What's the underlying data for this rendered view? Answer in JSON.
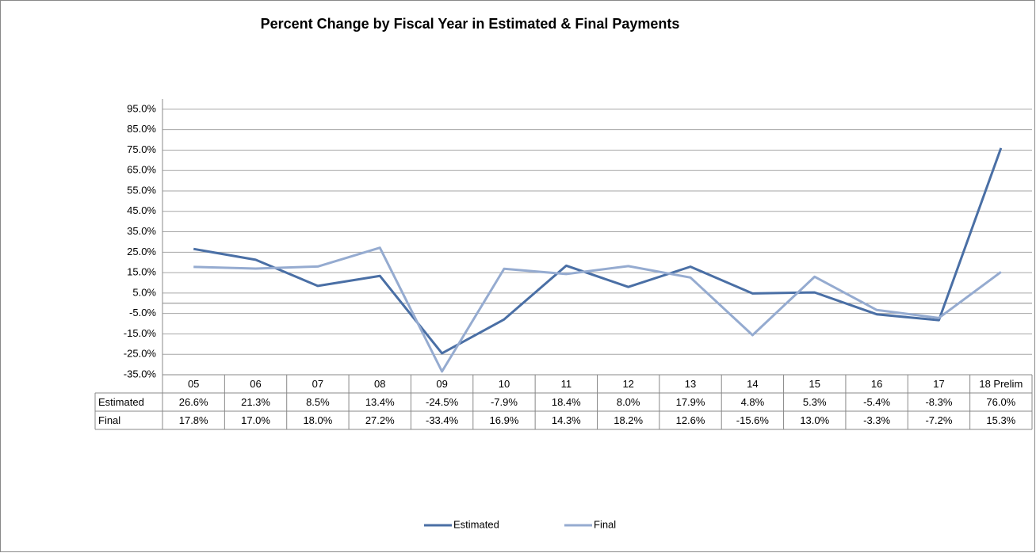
{
  "chart_data": {
    "type": "line",
    "title": "Percent Change by Fiscal Year in Estimated & Final Payments",
    "categories": [
      "05",
      "06",
      "07",
      "08",
      "09",
      "10",
      "11",
      "12",
      "13",
      "14",
      "15",
      "16",
      "17",
      "18 Prelim"
    ],
    "series": [
      {
        "name": "Estimated",
        "color": "#4a6fa5",
        "values": [
          26.6,
          21.3,
          8.5,
          13.4,
          -24.5,
          -7.9,
          18.4,
          8.0,
          17.9,
          4.8,
          5.3,
          -5.4,
          -8.3,
          76.0
        ],
        "value_labels": [
          "26.6%",
          "21.3%",
          "8.5%",
          "13.4%",
          "-24.5%",
          "-7.9%",
          "18.4%",
          "8.0%",
          "17.9%",
          "4.8%",
          "5.3%",
          "-5.4%",
          "-8.3%",
          "76.0%"
        ]
      },
      {
        "name": "Final",
        "color": "#95abd0",
        "values": [
          17.8,
          17.0,
          18.0,
          27.2,
          -33.4,
          16.9,
          14.3,
          18.2,
          12.6,
          -15.6,
          13.0,
          -3.3,
          -7.2,
          15.3
        ],
        "value_labels": [
          "17.8%",
          "17.0%",
          "18.0%",
          "27.2%",
          "-33.4%",
          "16.9%",
          "14.3%",
          "18.2%",
          "12.6%",
          "-15.6%",
          "13.0%",
          "-3.3%",
          "-7.2%",
          "15.3%"
        ]
      }
    ],
    "ylim": [
      -35,
      100
    ],
    "yticks": [
      {
        "value": -35,
        "label": "-35.0%"
      },
      {
        "value": -25,
        "label": "-25.0%"
      },
      {
        "value": -15,
        "label": "-15.0%"
      },
      {
        "value": -5,
        "label": "-5.0%"
      },
      {
        "value": 5,
        "label": "5.0%"
      },
      {
        "value": 15,
        "label": "15.0%"
      },
      {
        "value": 25,
        "label": "25.0%"
      },
      {
        "value": 35,
        "label": "35.0%"
      },
      {
        "value": 45,
        "label": "45.0%"
      },
      {
        "value": 55,
        "label": "55.0%"
      },
      {
        "value": 65,
        "label": "65.0%"
      },
      {
        "value": 75,
        "label": "75.0%"
      },
      {
        "value": 85,
        "label": "85.0%"
      },
      {
        "value": 95,
        "label": "95.0%"
      }
    ],
    "grid": true
  }
}
